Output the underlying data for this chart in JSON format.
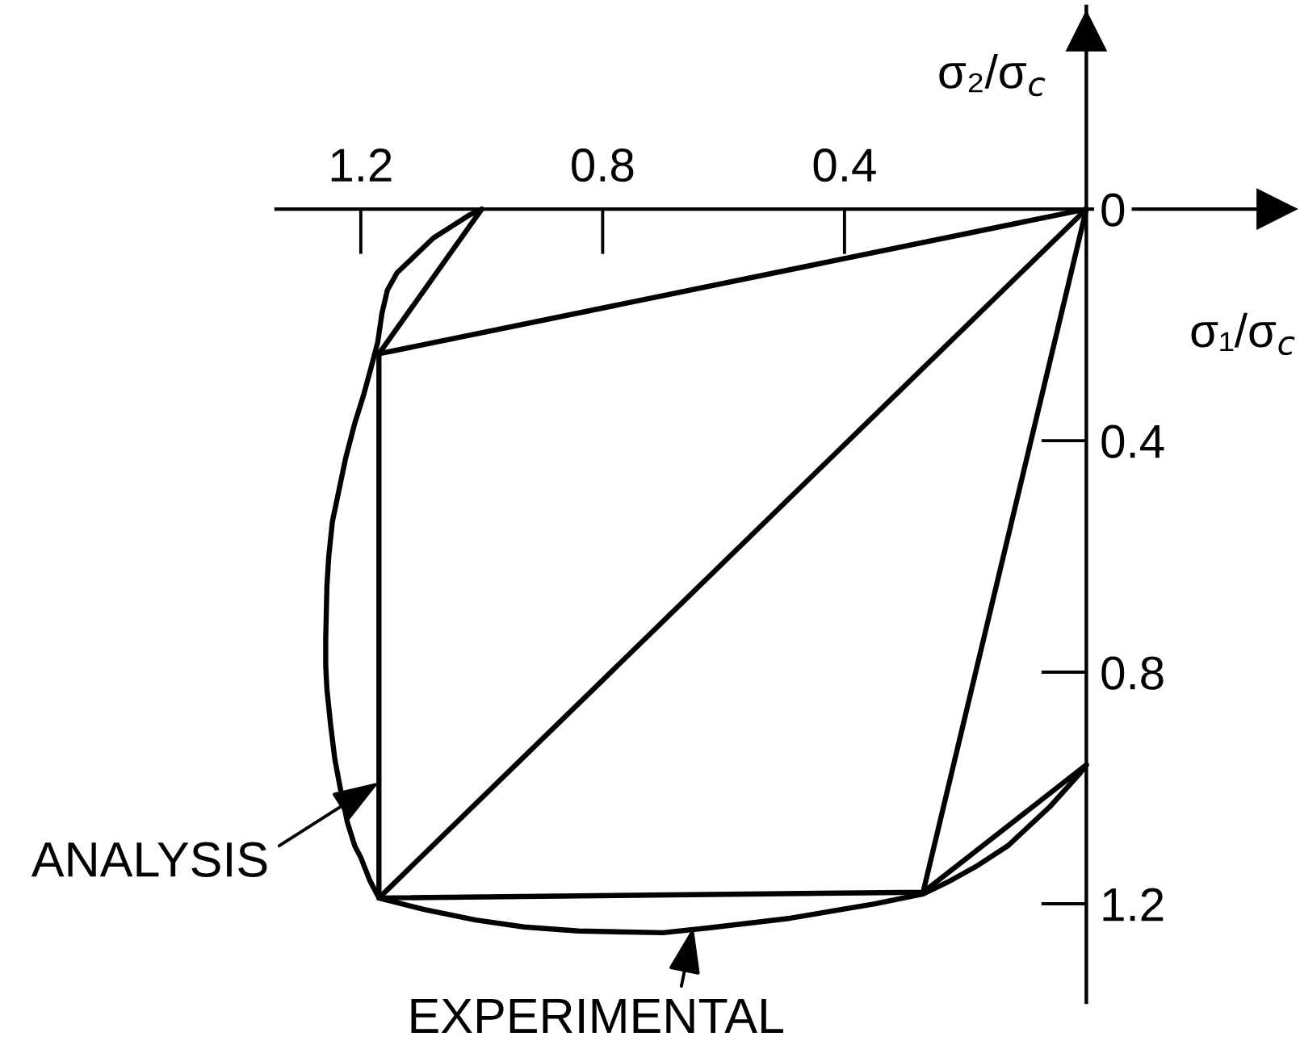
{
  "chart_data": {
    "type": "line",
    "xlabel": "σ₁/σ$_{c}$",
    "ylabel": "σ₂/σ$_{c}$",
    "xlim": [
      1.34,
      -0.34
    ],
    "ylim": [
      1.37,
      -0.35
    ],
    "xticks": [
      1.2,
      0.8,
      0.4
    ],
    "yticks": [
      0,
      0.4,
      0.8,
      1.2
    ],
    "series": [
      {
        "color": "#000000",
        "x": [
          1.0,
          1.02,
          1.05,
          1.08,
          1.11,
          1.14,
          1.156,
          1.165,
          1.172,
          1.182,
          1.195,
          1.21,
          1.225,
          1.237,
          1.247,
          1.253,
          1.256,
          1.258,
          1.258,
          1.256,
          1.25,
          1.243,
          1.234,
          1.222,
          1.21,
          1.2,
          1.185,
          1.17,
          1.095,
          1.01,
          0.93,
          0.84,
          0.7,
          0.62,
          0.49,
          0.35,
          0.27,
          0.23,
          0.18,
          0.13,
          0.06,
          0.01,
          0
        ],
        "values": [
          0,
          0.01,
          0.03,
          0.05,
          0.08,
          0.11,
          0.14,
          0.18,
          0.23,
          0.27,
          0.32,
          0.37,
          0.43,
          0.49,
          0.54,
          0.6,
          0.65,
          0.74,
          0.79,
          0.83,
          0.89,
          0.95,
          1.0,
          1.06,
          1.1,
          1.12,
          1.16,
          1.19,
          1.21,
          1.228,
          1.24,
          1.247,
          1.25,
          1.241,
          1.225,
          1.2,
          1.183,
          1.163,
          1.134,
          1.1,
          1.032,
          0.974,
          0.96
        ]
      },
      {
        "color": "#000000",
        "x": [
          1.0,
          1.17,
          0,
          1.17,
          0.27,
          0
        ],
        "values": [
          0,
          0.25,
          0,
          1.19,
          1.18,
          0.96
        ]
      },
      {
        "color": "#000000",
        "x": [
          1.17,
          1.17
        ],
        "values": [
          0.25,
          1.19
        ]
      },
      {
        "color": "#000000",
        "x": [
          0.27,
          0
        ],
        "values": [
          1.18,
          0
        ]
      }
    ],
    "annotations": [
      {
        "text": "ANALYSIS",
        "x": 1.17,
        "y": 0.99
      },
      {
        "text": "EXPERIMENTAL",
        "x": 0.65,
        "y": 1.24
      }
    ]
  }
}
